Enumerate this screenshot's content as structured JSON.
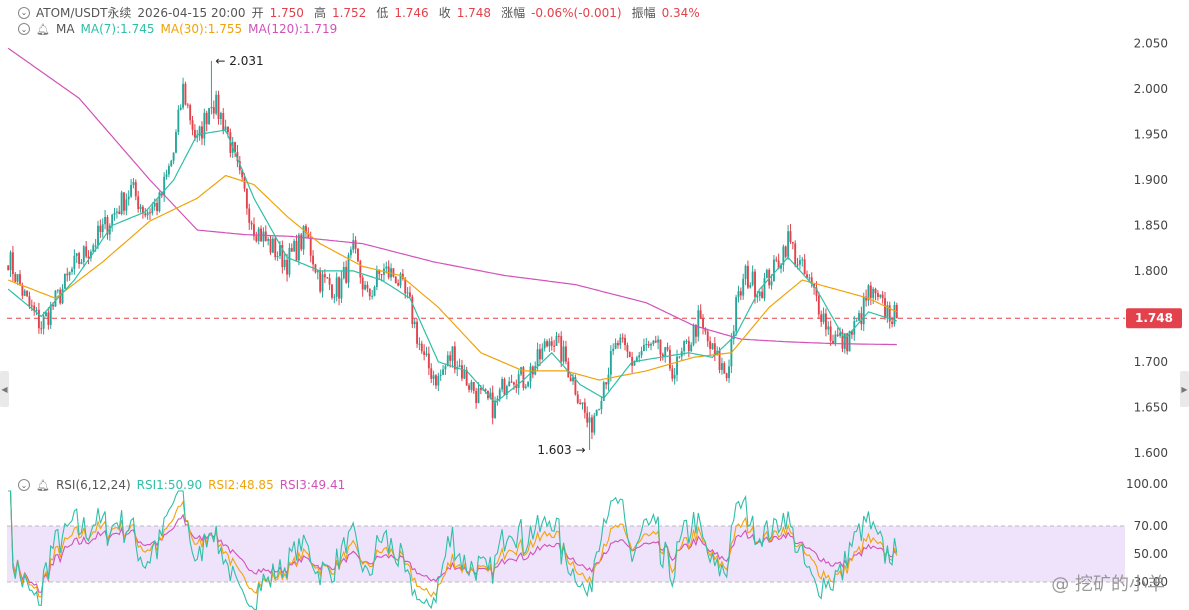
{
  "header": {
    "symbol": "ATOM/USDT永续",
    "datetime": "2026-04-15 20:00",
    "open_label": "开",
    "open": "1.750",
    "high_label": "高",
    "high": "1.752",
    "low_label": "低",
    "low": "1.746",
    "close_label": "收",
    "close": "1.748",
    "change_label": "涨幅",
    "change": "-0.06%(-0.001)",
    "amplitude_label": "振幅",
    "amplitude": "0.34%"
  },
  "ma_legend": {
    "name": "MA",
    "ma7": "MA(7):1.745",
    "ma30": "MA(30):1.755",
    "ma120": "MA(120):1.719"
  },
  "rsi_legend": {
    "name": "RSI(6,12,24)",
    "rsi1": "RSI1:50.90",
    "rsi2": "RSI2:48.85",
    "rsi3": "RSI3:49.41"
  },
  "watermark": "@ 挖矿的小羊",
  "colors": {
    "up": "#26a69a",
    "down": "#e3414b",
    "ma7": "#2fbfa7",
    "ma30": "#f0a30a",
    "ma120": "#d152b8",
    "rsi1": "#2fbfa7",
    "rsi2": "#f0a30a",
    "rsi3": "#d152b8",
    "price_tag": "#e3414b",
    "rsi_band": "#efe3fb"
  },
  "chart_data": [
    {
      "type": "candlestick",
      "title": "ATOM/USDT永续",
      "y_ticks": [
        "2.050",
        "2.000",
        "1.950",
        "1.900",
        "1.850",
        "1.800",
        "1.750",
        "1.700",
        "1.650",
        "1.600"
      ],
      "ylim": [
        1.595,
        2.07
      ],
      "current_price": 1.748,
      "current_price_label": "1.748",
      "annotations": [
        {
          "label": "2.031",
          "value": 2.031,
          "kind": "high"
        },
        {
          "label": "1.603",
          "value": 1.603,
          "kind": "low"
        }
      ],
      "close_anchors": [
        [
          0,
          1.815
        ],
        [
          8,
          1.765
        ],
        [
          14,
          1.74
        ],
        [
          22,
          1.775
        ],
        [
          28,
          1.805
        ],
        [
          36,
          1.83
        ],
        [
          44,
          1.86
        ],
        [
          52,
          1.89
        ],
        [
          58,
          1.865
        ],
        [
          64,
          1.875
        ],
        [
          70,
          1.93
        ],
        [
          74,
          2.0
        ],
        [
          80,
          1.94
        ],
        [
          86,
          1.99
        ],
        [
          92,
          1.96
        ],
        [
          98,
          1.9
        ],
        [
          104,
          1.85
        ],
        [
          110,
          1.83
        ],
        [
          118,
          1.81
        ],
        [
          126,
          1.84
        ],
        [
          132,
          1.79
        ],
        [
          140,
          1.78
        ],
        [
          146,
          1.82
        ],
        [
          152,
          1.77
        ],
        [
          158,
          1.8
        ],
        [
          164,
          1.795
        ],
        [
          170,
          1.76
        ],
        [
          176,
          1.7
        ],
        [
          182,
          1.68
        ],
        [
          188,
          1.71
        ],
        [
          194,
          1.68
        ],
        [
          200,
          1.66
        ],
        [
          206,
          1.65
        ],
        [
          212,
          1.69
        ],
        [
          218,
          1.68
        ],
        [
          224,
          1.7
        ],
        [
          230,
          1.73
        ],
        [
          236,
          1.7
        ],
        [
          242,
          1.66
        ],
        [
          246,
          1.625
        ],
        [
          252,
          1.68
        ],
        [
          258,
          1.72
        ],
        [
          264,
          1.7
        ],
        [
          270,
          1.715
        ],
        [
          276,
          1.71
        ],
        [
          282,
          1.69
        ],
        [
          288,
          1.72
        ],
        [
          292,
          1.745
        ],
        [
          298,
          1.71
        ],
        [
          304,
          1.685
        ],
        [
          308,
          1.76
        ],
        [
          312,
          1.795
        ],
        [
          318,
          1.78
        ],
        [
          324,
          1.8
        ],
        [
          330,
          1.835
        ],
        [
          336,
          1.8
        ],
        [
          342,
          1.77
        ],
        [
          348,
          1.73
        ],
        [
          354,
          1.72
        ],
        [
          360,
          1.745
        ],
        [
          364,
          1.775
        ],
        [
          370,
          1.76
        ],
        [
          376,
          1.748
        ]
      ],
      "ma7_anchors": [
        [
          0,
          1.78
        ],
        [
          14,
          1.75
        ],
        [
          28,
          1.79
        ],
        [
          44,
          1.85
        ],
        [
          58,
          1.865
        ],
        [
          70,
          1.9
        ],
        [
          80,
          1.95
        ],
        [
          92,
          1.955
        ],
        [
          104,
          1.88
        ],
        [
          118,
          1.815
        ],
        [
          132,
          1.8
        ],
        [
          146,
          1.8
        ],
        [
          158,
          1.79
        ],
        [
          170,
          1.77
        ],
        [
          182,
          1.7
        ],
        [
          194,
          1.69
        ],
        [
          206,
          1.655
        ],
        [
          218,
          1.68
        ],
        [
          230,
          1.71
        ],
        [
          242,
          1.675
        ],
        [
          252,
          1.66
        ],
        [
          264,
          1.7
        ],
        [
          276,
          1.705
        ],
        [
          288,
          1.71
        ],
        [
          298,
          1.705
        ],
        [
          308,
          1.73
        ],
        [
          318,
          1.78
        ],
        [
          330,
          1.815
        ],
        [
          342,
          1.78
        ],
        [
          354,
          1.725
        ],
        [
          364,
          1.755
        ],
        [
          376,
          1.745
        ]
      ],
      "ma30_anchors": [
        [
          0,
          1.79
        ],
        [
          20,
          1.77
        ],
        [
          40,
          1.81
        ],
        [
          60,
          1.855
        ],
        [
          80,
          1.88
        ],
        [
          92,
          1.905
        ],
        [
          104,
          1.895
        ],
        [
          118,
          1.86
        ],
        [
          132,
          1.83
        ],
        [
          150,
          1.805
        ],
        [
          166,
          1.795
        ],
        [
          182,
          1.76
        ],
        [
          200,
          1.71
        ],
        [
          218,
          1.69
        ],
        [
          236,
          1.69
        ],
        [
          250,
          1.68
        ],
        [
          270,
          1.69
        ],
        [
          290,
          1.705
        ],
        [
          306,
          1.71
        ],
        [
          322,
          1.76
        ],
        [
          336,
          1.79
        ],
        [
          350,
          1.78
        ],
        [
          364,
          1.77
        ],
        [
          376,
          1.755
        ]
      ],
      "ma120_anchors": [
        [
          0,
          2.045
        ],
        [
          30,
          1.99
        ],
        [
          60,
          1.9
        ],
        [
          80,
          1.845
        ],
        [
          100,
          1.84
        ],
        [
          120,
          1.838
        ],
        [
          150,
          1.83
        ],
        [
          180,
          1.81
        ],
        [
          210,
          1.795
        ],
        [
          240,
          1.785
        ],
        [
          270,
          1.765
        ],
        [
          290,
          1.74
        ],
        [
          310,
          1.725
        ],
        [
          330,
          1.722
        ],
        [
          350,
          1.72
        ],
        [
          376,
          1.719
        ]
      ]
    },
    {
      "type": "line",
      "title": "RSI(6,12,24)",
      "y_ticks": [
        "100.00",
        "70.00",
        "50.00",
        "30.00"
      ],
      "ylim": [
        0,
        100
      ],
      "band": [
        30,
        70
      ],
      "series": [
        {
          "name": "RSI1",
          "last": 50.9
        },
        {
          "name": "RSI2",
          "last": 48.85
        },
        {
          "name": "RSI3",
          "last": 49.41
        }
      ]
    }
  ]
}
